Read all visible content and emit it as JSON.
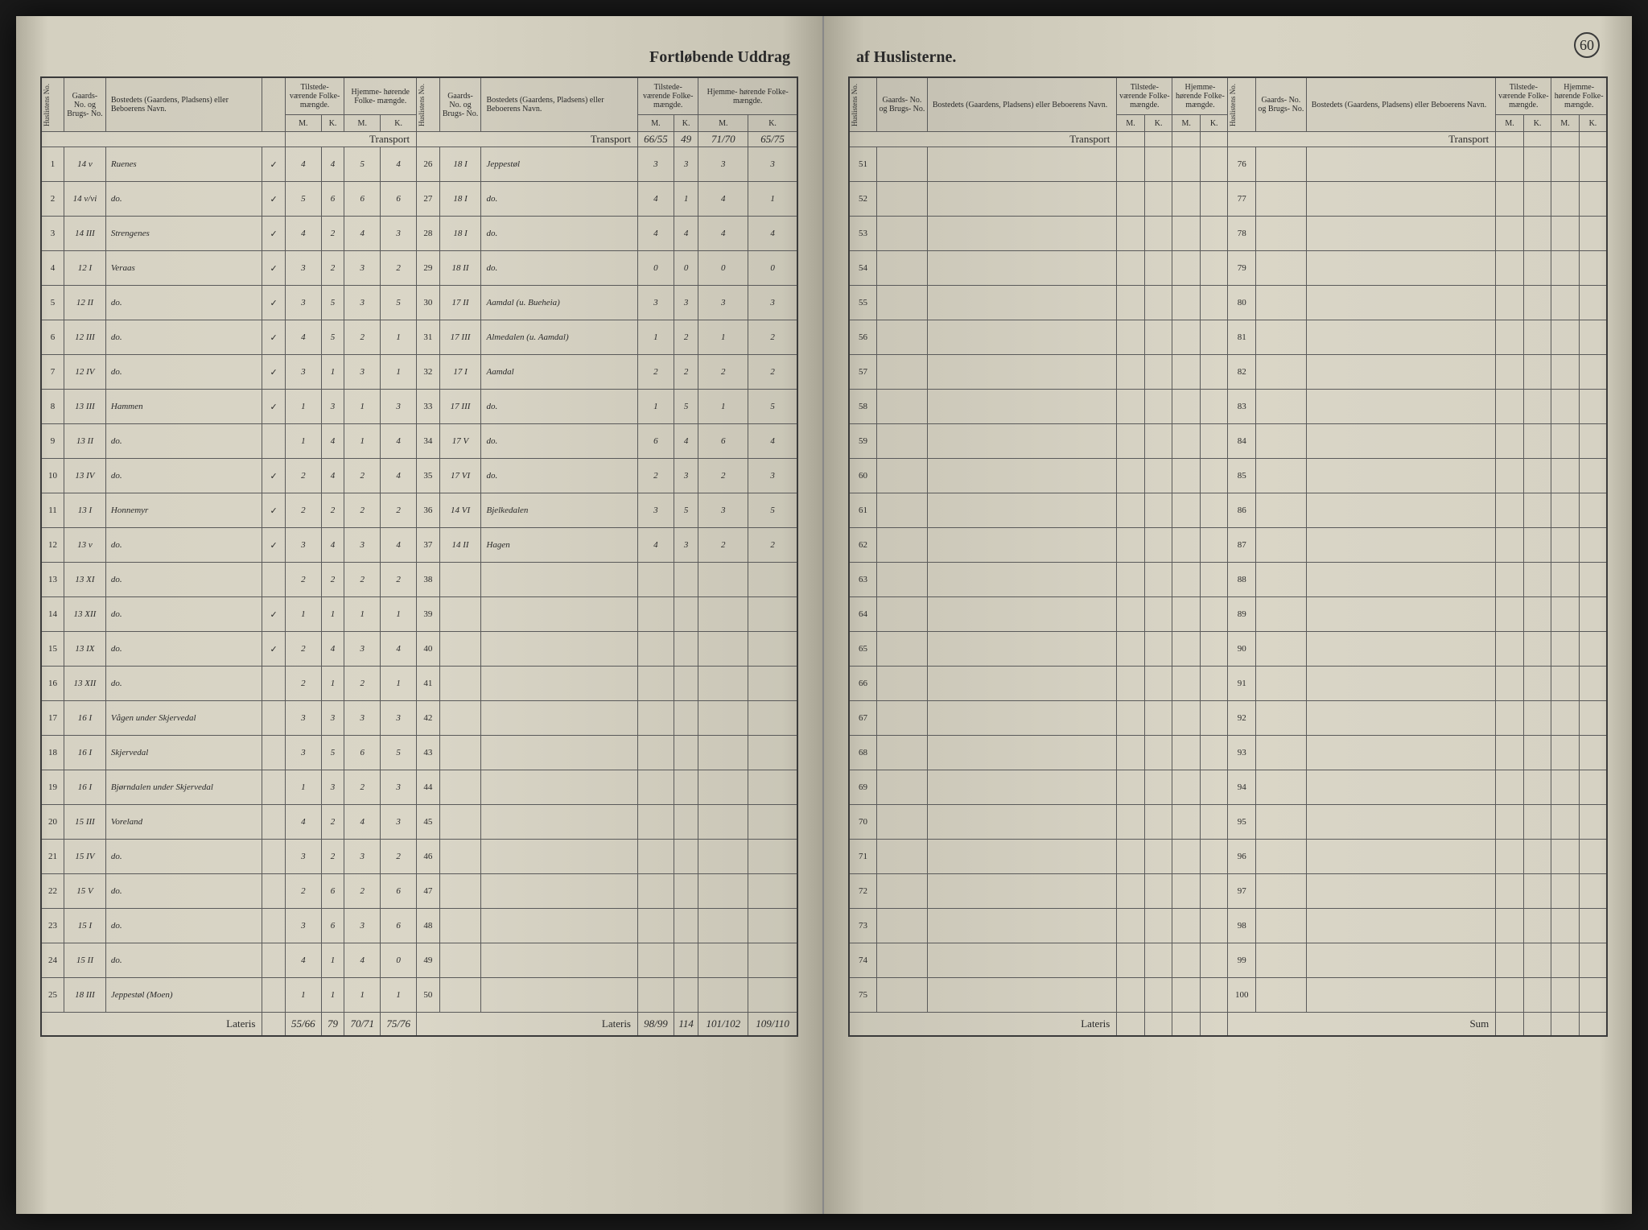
{
  "document": {
    "type": "census-ledger",
    "page_number": "60",
    "title_left": "Fortløbende Uddrag",
    "title_right": "af Huslisterne.",
    "background_color": "#d4d0c0",
    "border_color": "#3a3a3a",
    "ink_color": "#3a3a2a",
    "printed_color": "#2a2a2a"
  },
  "headers": {
    "huslisten": "Huslistens\nNo.",
    "gaards": "Gaards-\nNo. og\nBrugs-\nNo.",
    "bostedet": "Bostedets (Gaardens, Pladsens)\neller Beboerens Navn.",
    "tilstede": "Tilstede-\nværende\nFolke-\nmængde.",
    "hjemme": "Hjemme-\nhørende\nFolke-\nmængde.",
    "m": "M.",
    "k": "K."
  },
  "labels": {
    "transport": "Transport",
    "lateris": "Lateris",
    "sum": "Sum"
  },
  "transport_values": {
    "left_col2": [
      "66/55",
      "49",
      "71/70",
      "65/75"
    ]
  },
  "left_page": {
    "section1": [
      {
        "n": "1",
        "g": "14 v",
        "name": "Ruenes",
        "chk": "✓",
        "tm": "4",
        "tk": "4",
        "hm": "5",
        "hk": "4"
      },
      {
        "n": "2",
        "g": "14 v/vi",
        "name": "do.",
        "chk": "✓",
        "tm": "5",
        "tk": "6",
        "hm": "6",
        "hk": "6"
      },
      {
        "n": "3",
        "g": "14 III",
        "name": "Strengenes",
        "chk": "✓",
        "tm": "4",
        "tk": "2",
        "hm": "4",
        "hk": "3"
      },
      {
        "n": "4",
        "g": "12 I",
        "name": "Veraas",
        "chk": "✓",
        "tm": "3",
        "tk": "2",
        "hm": "3",
        "hk": "2"
      },
      {
        "n": "5",
        "g": "12 II",
        "name": "do.",
        "chk": "✓",
        "tm": "3",
        "tk": "5",
        "hm": "3",
        "hk": "5"
      },
      {
        "n": "6",
        "g": "12 III",
        "name": "do.",
        "chk": "✓",
        "tm": "4",
        "tk": "5",
        "hm": "2",
        "hk": "1"
      },
      {
        "n": "7",
        "g": "12 IV",
        "name": "do.",
        "chk": "✓",
        "tm": "3",
        "tk": "1",
        "hm": "3",
        "hk": "1"
      },
      {
        "n": "8",
        "g": "13 III",
        "name": "Hammen",
        "chk": "✓",
        "tm": "1",
        "tk": "3",
        "hm": "1",
        "hk": "3"
      },
      {
        "n": "9",
        "g": "13 II",
        "name": "do.",
        "chk": "",
        "tm": "1",
        "tk": "4",
        "hm": "1",
        "hk": "4"
      },
      {
        "n": "10",
        "g": "13 IV",
        "name": "do.",
        "chk": "✓",
        "tm": "2",
        "tk": "4",
        "hm": "2",
        "hk": "4"
      },
      {
        "n": "11",
        "g": "13 I",
        "name": "Honnemyr",
        "chk": "✓",
        "tm": "2",
        "tk": "2",
        "hm": "2",
        "hk": "2"
      },
      {
        "n": "12",
        "g": "13 v",
        "name": "do.",
        "chk": "✓",
        "tm": "3",
        "tk": "4",
        "hm": "3",
        "hk": "4"
      },
      {
        "n": "13",
        "g": "13 XI",
        "name": "do.",
        "chk": "",
        "tm": "2",
        "tk": "2",
        "hm": "2",
        "hk": "2"
      },
      {
        "n": "14",
        "g": "13 XII",
        "name": "do.",
        "chk": "✓",
        "tm": "1",
        "tk": "1",
        "hm": "1",
        "hk": "1"
      },
      {
        "n": "15",
        "g": "13 IX",
        "name": "do.",
        "chk": "✓",
        "tm": "2",
        "tk": "4",
        "hm": "3",
        "hk": "4"
      },
      {
        "n": "16",
        "g": "13 XII",
        "name": "do.",
        "chk": "",
        "tm": "2",
        "tk": "1",
        "hm": "2",
        "hk": "1"
      },
      {
        "n": "17",
        "g": "16 I",
        "name": "Vågen under Skjervedal",
        "chk": "",
        "tm": "3",
        "tk": "3",
        "hm": "3",
        "hk": "3"
      },
      {
        "n": "18",
        "g": "16 I",
        "name": "Skjervedal",
        "chk": "",
        "tm": "3",
        "tk": "5",
        "hm": "6",
        "hk": "5"
      },
      {
        "n": "19",
        "g": "16 I",
        "name": "Bjørndalen under Skjervedal",
        "chk": "",
        "tm": "1",
        "tk": "3",
        "hm": "2",
        "hk": "3"
      },
      {
        "n": "20",
        "g": "15 III",
        "name": "Voreland",
        "chk": "",
        "tm": "4",
        "tk": "2",
        "hm": "4",
        "hk": "3"
      },
      {
        "n": "21",
        "g": "15 IV",
        "name": "do.",
        "chk": "",
        "tm": "3",
        "tk": "2",
        "hm": "3",
        "hk": "2"
      },
      {
        "n": "22",
        "g": "15 V",
        "name": "do.",
        "chk": "",
        "tm": "2",
        "tk": "6",
        "hm": "2",
        "hk": "6"
      },
      {
        "n": "23",
        "g": "15 I",
        "name": "do.",
        "chk": "",
        "tm": "3",
        "tk": "6",
        "hm": "3",
        "hk": "6"
      },
      {
        "n": "24",
        "g": "15 II",
        "name": "do.",
        "chk": "",
        "tm": "4",
        "tk": "1",
        "hm": "4",
        "hk": "0"
      },
      {
        "n": "25",
        "g": "18 III",
        "name": "Jeppestøl (Moen)",
        "chk": "",
        "tm": "1",
        "tk": "1",
        "hm": "1",
        "hk": "1"
      }
    ],
    "section2": [
      {
        "n": "26",
        "g": "18 I",
        "name": "Jeppestøl",
        "tm": "3",
        "tk": "3",
        "hm": "3",
        "hk": "3"
      },
      {
        "n": "27",
        "g": "18 I",
        "name": "do.",
        "tm": "4",
        "tk": "1",
        "hm": "4",
        "hk": "1"
      },
      {
        "n": "28",
        "g": "18 I",
        "name": "do.",
        "tm": "4",
        "tk": "4",
        "hm": "4",
        "hk": "4"
      },
      {
        "n": "29",
        "g": "18 II",
        "name": "do.",
        "tm": "0",
        "tk": "0",
        "hm": "0",
        "hk": "0"
      },
      {
        "n": "30",
        "g": "17 II",
        "name": "Aamdal (u. Bueheia)",
        "tm": "3",
        "tk": "3",
        "hm": "3",
        "hk": "3"
      },
      {
        "n": "31",
        "g": "17 III",
        "name": "Almedalen (u. Aamdal)",
        "tm": "1",
        "tk": "2",
        "hm": "1",
        "hk": "2"
      },
      {
        "n": "32",
        "g": "17 I",
        "name": "Aamdal",
        "tm": "2",
        "tk": "2",
        "hm": "2",
        "hk": "2"
      },
      {
        "n": "33",
        "g": "17 III",
        "name": "do.",
        "tm": "1",
        "tk": "5",
        "hm": "1",
        "hk": "5"
      },
      {
        "n": "34",
        "g": "17 V",
        "name": "do.",
        "tm": "6",
        "tk": "4",
        "hm": "6",
        "hk": "4"
      },
      {
        "n": "35",
        "g": "17 VI",
        "name": "do.",
        "tm": "2",
        "tk": "3",
        "hm": "2",
        "hk": "3"
      },
      {
        "n": "36",
        "g": "14 VI",
        "name": "Bjelkedalen",
        "tm": "3",
        "tk": "5",
        "hm": "3",
        "hk": "5"
      },
      {
        "n": "37",
        "g": "14 II",
        "name": "Hagen",
        "tm": "4",
        "tk": "3",
        "hm": "2",
        "hk": "2"
      },
      {
        "n": "38",
        "g": "",
        "name": "",
        "tm": "",
        "tk": "",
        "hm": "",
        "hk": ""
      },
      {
        "n": "39",
        "g": "",
        "name": "",
        "tm": "",
        "tk": "",
        "hm": "",
        "hk": ""
      },
      {
        "n": "40",
        "g": "",
        "name": "",
        "tm": "",
        "tk": "",
        "hm": "",
        "hk": ""
      },
      {
        "n": "41",
        "g": "",
        "name": "",
        "tm": "",
        "tk": "",
        "hm": "",
        "hk": ""
      },
      {
        "n": "42",
        "g": "",
        "name": "",
        "tm": "",
        "tk": "",
        "hm": "",
        "hk": ""
      },
      {
        "n": "43",
        "g": "",
        "name": "",
        "tm": "",
        "tk": "",
        "hm": "",
        "hk": ""
      },
      {
        "n": "44",
        "g": "",
        "name": "",
        "tm": "",
        "tk": "",
        "hm": "",
        "hk": ""
      },
      {
        "n": "45",
        "g": "",
        "name": "",
        "tm": "",
        "tk": "",
        "hm": "",
        "hk": ""
      },
      {
        "n": "46",
        "g": "",
        "name": "",
        "tm": "",
        "tk": "",
        "hm": "",
        "hk": ""
      },
      {
        "n": "47",
        "g": "",
        "name": "",
        "tm": "",
        "tk": "",
        "hm": "",
        "hk": ""
      },
      {
        "n": "48",
        "g": "",
        "name": "",
        "tm": "",
        "tk": "",
        "hm": "",
        "hk": ""
      },
      {
        "n": "49",
        "g": "",
        "name": "",
        "tm": "",
        "tk": "",
        "hm": "",
        "hk": ""
      },
      {
        "n": "50",
        "g": "",
        "name": "",
        "tm": "",
        "tk": "",
        "hm": "",
        "hk": ""
      }
    ],
    "lateris1": {
      "tm": "55/66",
      "tk": "79",
      "hm": "70/71",
      "hk": "75/76"
    },
    "lateris2": {
      "tm": "98/99",
      "tk": "114",
      "hm": "101/102",
      "hk": "109/110"
    }
  },
  "right_page": {
    "section1_start": 51,
    "section1_end": 75,
    "section2_start": 76,
    "section2_end": 100
  }
}
